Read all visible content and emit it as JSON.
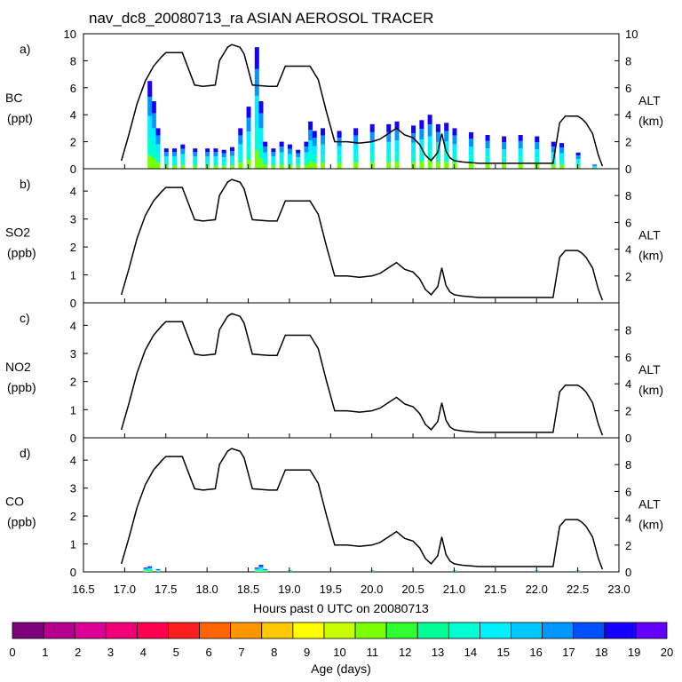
{
  "chart_data": {
    "type": "line",
    "title": "nav_dc8_20080713_ra ASIAN AEROSOL TRACER",
    "xlabel": "Hours past 0 UTC on 20080713",
    "xlim": [
      16.5,
      23.0
    ],
    "x_ticks": [
      "16.5",
      "17.0",
      "17.5",
      "18.0",
      "18.5",
      "19.0",
      "19.5",
      "20.0",
      "20.5",
      "21.0",
      "21.5",
      "22.0",
      "22.5",
      "23.0"
    ],
    "altitude_km": {
      "x": [
        16.96,
        17.05,
        17.15,
        17.25,
        17.35,
        17.45,
        17.5,
        17.7,
        17.85,
        17.95,
        18.1,
        18.15,
        18.25,
        18.3,
        18.4,
        18.45,
        18.55,
        18.75,
        18.85,
        18.95,
        19.25,
        19.35,
        19.45,
        19.55,
        19.7,
        19.85,
        20.0,
        20.1,
        20.2,
        20.3,
        20.4,
        20.5,
        20.58,
        20.65,
        20.72,
        20.8,
        20.85,
        20.9,
        20.95,
        21.0,
        21.1,
        21.3,
        21.5,
        21.7,
        21.9,
        22.0,
        22.1,
        22.2,
        22.28,
        22.35,
        22.5,
        22.55,
        22.6,
        22.68,
        22.75,
        22.8
      ],
      "y": [
        0.6,
        2.5,
        4.8,
        6.5,
        7.6,
        8.3,
        8.6,
        8.6,
        6.2,
        6.1,
        6.2,
        8.0,
        9.0,
        9.2,
        9.0,
        8.5,
        6.2,
        6.1,
        6.1,
        7.6,
        7.6,
        6.6,
        4.2,
        2.0,
        2.0,
        1.9,
        2.0,
        2.2,
        2.6,
        3.0,
        2.5,
        2.3,
        1.8,
        1.0,
        0.6,
        1.2,
        2.6,
        1.3,
        0.8,
        0.6,
        0.5,
        0.4,
        0.4,
        0.4,
        0.4,
        0.4,
        0.4,
        0.4,
        3.4,
        3.9,
        3.9,
        3.7,
        3.4,
        2.6,
        1.0,
        0.2
      ]
    },
    "colorbar": {
      "label": "Age (days)",
      "ticks": [
        "0",
        "1",
        "2",
        "3",
        "4",
        "5",
        "6",
        "7",
        "8",
        "9",
        "10",
        "11",
        "12",
        "13",
        "14",
        "15",
        "16",
        "17",
        "18",
        "19",
        "20"
      ],
      "colors": [
        "#7f007f",
        "#b4008c",
        "#dc0096",
        "#f00078",
        "#ff0050",
        "#ff1e1e",
        "#ff6400",
        "#ff9600",
        "#ffc800",
        "#ffff00",
        "#c8ff00",
        "#78ff00",
        "#32ff32",
        "#00ff96",
        "#00ffd2",
        "#00f0ff",
        "#00c8ff",
        "#0096ff",
        "#0050ff",
        "#1400ff",
        "#6400ff"
      ]
    },
    "panels": [
      {
        "id": "a)",
        "species": "BC",
        "unit": "(ppt)",
        "ylim": [
          0,
          10
        ],
        "yticks": [
          "0",
          "2",
          "4",
          "6",
          "8",
          "10"
        ],
        "alt_ticks": [
          "0",
          "2",
          "4",
          "6",
          "8",
          "10"
        ],
        "alt_label": "ALT",
        "alt_unit": "(km)",
        "tracer_x": [
          17.3,
          17.35,
          17.4,
          17.5,
          17.6,
          17.7,
          17.85,
          18.0,
          18.1,
          18.2,
          18.3,
          18.4,
          18.5,
          18.6,
          18.65,
          18.7,
          18.8,
          18.9,
          19.0,
          19.1,
          19.2,
          19.25,
          19.3,
          19.4,
          19.6,
          19.8,
          20.0,
          20.2,
          20.3,
          20.5,
          20.6,
          20.7,
          20.8,
          20.9,
          21.0,
          21.2,
          21.4,
          21.6,
          21.8,
          22.0,
          22.2,
          22.3,
          22.5,
          22.7
        ],
        "tracer_y": [
          6.5,
          5.0,
          3.0,
          1.5,
          1.5,
          1.8,
          1.5,
          1.5,
          1.5,
          1.4,
          1.6,
          3.0,
          4.6,
          9.0,
          5.0,
          2.0,
          1.5,
          2.0,
          1.8,
          1.4,
          2.0,
          3.5,
          2.8,
          3.0,
          2.8,
          3.0,
          3.3,
          3.3,
          3.5,
          3.2,
          3.6,
          4.0,
          3.3,
          3.4,
          3.0,
          2.7,
          2.5,
          2.4,
          2.5,
          2.4,
          2.0,
          1.9,
          1.2,
          0.3
        ]
      },
      {
        "id": "b)",
        "species": "SO2",
        "unit": "(ppb)",
        "ylim": [
          0,
          4.8
        ],
        "yticks": [
          "0",
          "1",
          "2",
          "3",
          "4"
        ],
        "alt_ticks": [
          "2",
          "4",
          "6",
          "8"
        ],
        "alt_label": "ALT",
        "alt_unit": "(km)",
        "tracer_x": [],
        "tracer_y": []
      },
      {
        "id": "c)",
        "species": "NO2",
        "unit": "(ppb)",
        "ylim": [
          0,
          4.8
        ],
        "yticks": [
          "0",
          "1",
          "2",
          "3",
          "4"
        ],
        "alt_ticks": [
          "0",
          "2",
          "4",
          "6",
          "8"
        ],
        "alt_label": "ALT",
        "alt_unit": "(km)",
        "tracer_x": [],
        "tracer_y": []
      },
      {
        "id": "d)",
        "species": "CO",
        "unit": "(ppb)",
        "ylim": [
          0,
          4.8
        ],
        "yticks": [
          "0",
          "1",
          "2",
          "3",
          "4"
        ],
        "alt_ticks": [
          "0",
          "2",
          "4",
          "6",
          "8"
        ],
        "alt_label": "ALT",
        "alt_unit": "(km)",
        "tracer_x": [
          17.25,
          17.3,
          17.4,
          18.6,
          18.65,
          18.7,
          19.0,
          20.0,
          21.0,
          22.0,
          22.5
        ],
        "tracer_y": [
          0.15,
          0.2,
          0.1,
          0.15,
          0.25,
          0.1,
          0.05,
          0.05,
          0.05,
          0.05,
          0.05
        ]
      }
    ]
  }
}
